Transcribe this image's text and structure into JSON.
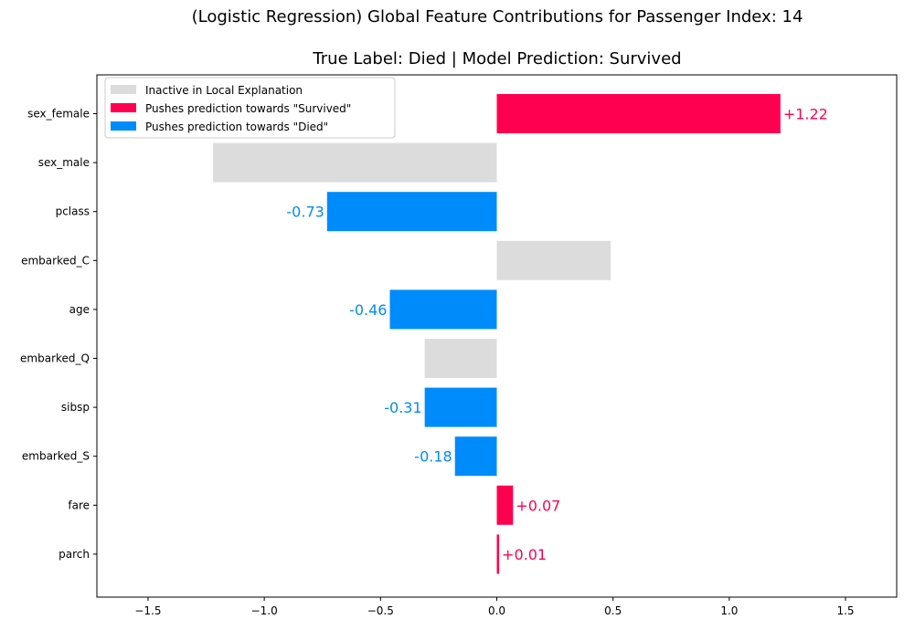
{
  "chart_data": {
    "type": "bar",
    "orientation": "horizontal",
    "title": "(Logistic Regression) Global Feature Contributions for Passenger Index: 14",
    "subtitle": "True Label: Died | Model Prediction: Survived",
    "xlabel": "",
    "ylabel": "",
    "xlim": [
      -1.72,
      1.72
    ],
    "xticks": [
      -1.5,
      -1.0,
      -0.5,
      0.0,
      0.5,
      1.0,
      1.5
    ],
    "xtick_labels": [
      "−1.5",
      "−1.0",
      "−0.5",
      "0.0",
      "0.5",
      "1.0",
      "1.5"
    ],
    "grid": false,
    "legend_position": "top-left",
    "categories": [
      "sex_female",
      "sex_male",
      "pclass",
      "embarked_C",
      "age",
      "embarked_Q",
      "sibsp",
      "embarked_S",
      "fare",
      "parch"
    ],
    "values": [
      1.22,
      -1.22,
      -0.73,
      0.49,
      -0.46,
      -0.31,
      -0.31,
      -0.18,
      0.07,
      0.01
    ],
    "status": [
      "survived",
      "inactive",
      "died",
      "inactive",
      "died",
      "inactive",
      "died",
      "died",
      "survived",
      "survived"
    ],
    "data_labels": [
      "+1.22",
      "",
      "-0.73",
      "",
      "-0.46",
      "",
      "-0.31",
      "-0.18",
      "+0.07",
      "+0.01"
    ],
    "colors": {
      "survived": "#ff0051",
      "died": "#008bfb",
      "inactive": "#dcdcdc"
    },
    "legend": [
      {
        "key": "inactive",
        "label": "Inactive in Local Explanation"
      },
      {
        "key": "survived",
        "label": "Pushes prediction towards \"Survived\""
      },
      {
        "key": "died",
        "label": "Pushes prediction towards \"Died\""
      }
    ]
  }
}
